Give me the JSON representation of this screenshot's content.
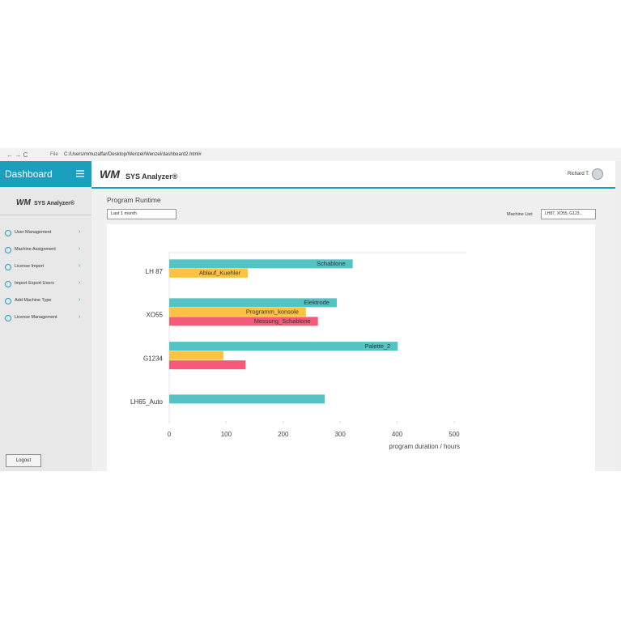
{
  "browser": {
    "file_label": "File",
    "url": "C:/Users/mmuzaffar/Desktop/Wenzel/Wenzel/dashboard2.html#"
  },
  "sidebar": {
    "title": "Dashboard",
    "logo_mark": "WM",
    "logo": "SYS Analyzer®",
    "menu": [
      "User Management",
      "Machine Assignment",
      "License Import",
      "Import Export Users",
      "Add Machine Type",
      "License Management"
    ],
    "logout": "Logout"
  },
  "header": {
    "logo_mark": "WM",
    "logo": "SYS Analyzer®",
    "user": "Richard T."
  },
  "page": {
    "title": "Program Runtime",
    "period": "Last 1 month",
    "machine_list_label": "Machine List:",
    "machine_list_value": "LH87, XO55, G123..."
  },
  "chart_data": {
    "type": "hbar",
    "categories": [
      "LH 87",
      "XO55",
      "G1234",
      "LH65_Auto"
    ],
    "series": [
      {
        "color": "#55c2c4",
        "values": [
          322,
          294,
          401,
          273
        ],
        "bar_labels": [
          "Schablone",
          "Elektrode",
          "Palette_2",
          null
        ]
      },
      {
        "color": "#fdc240",
        "values": [
          138,
          240,
          95,
          null
        ],
        "bar_labels": [
          "Ablauf_Kuehler",
          "Programm_konsole",
          null,
          null
        ]
      },
      {
        "color": "#f45b7b",
        "values": [
          null,
          261,
          134,
          null
        ],
        "bar_labels": [
          null,
          "Messung_Schablone",
          null,
          null
        ]
      }
    ],
    "xlabel": "program duration / hours",
    "xlim": [
      0,
      520
    ],
    "xticks": [
      0,
      100,
      200,
      300,
      400,
      500
    ]
  }
}
